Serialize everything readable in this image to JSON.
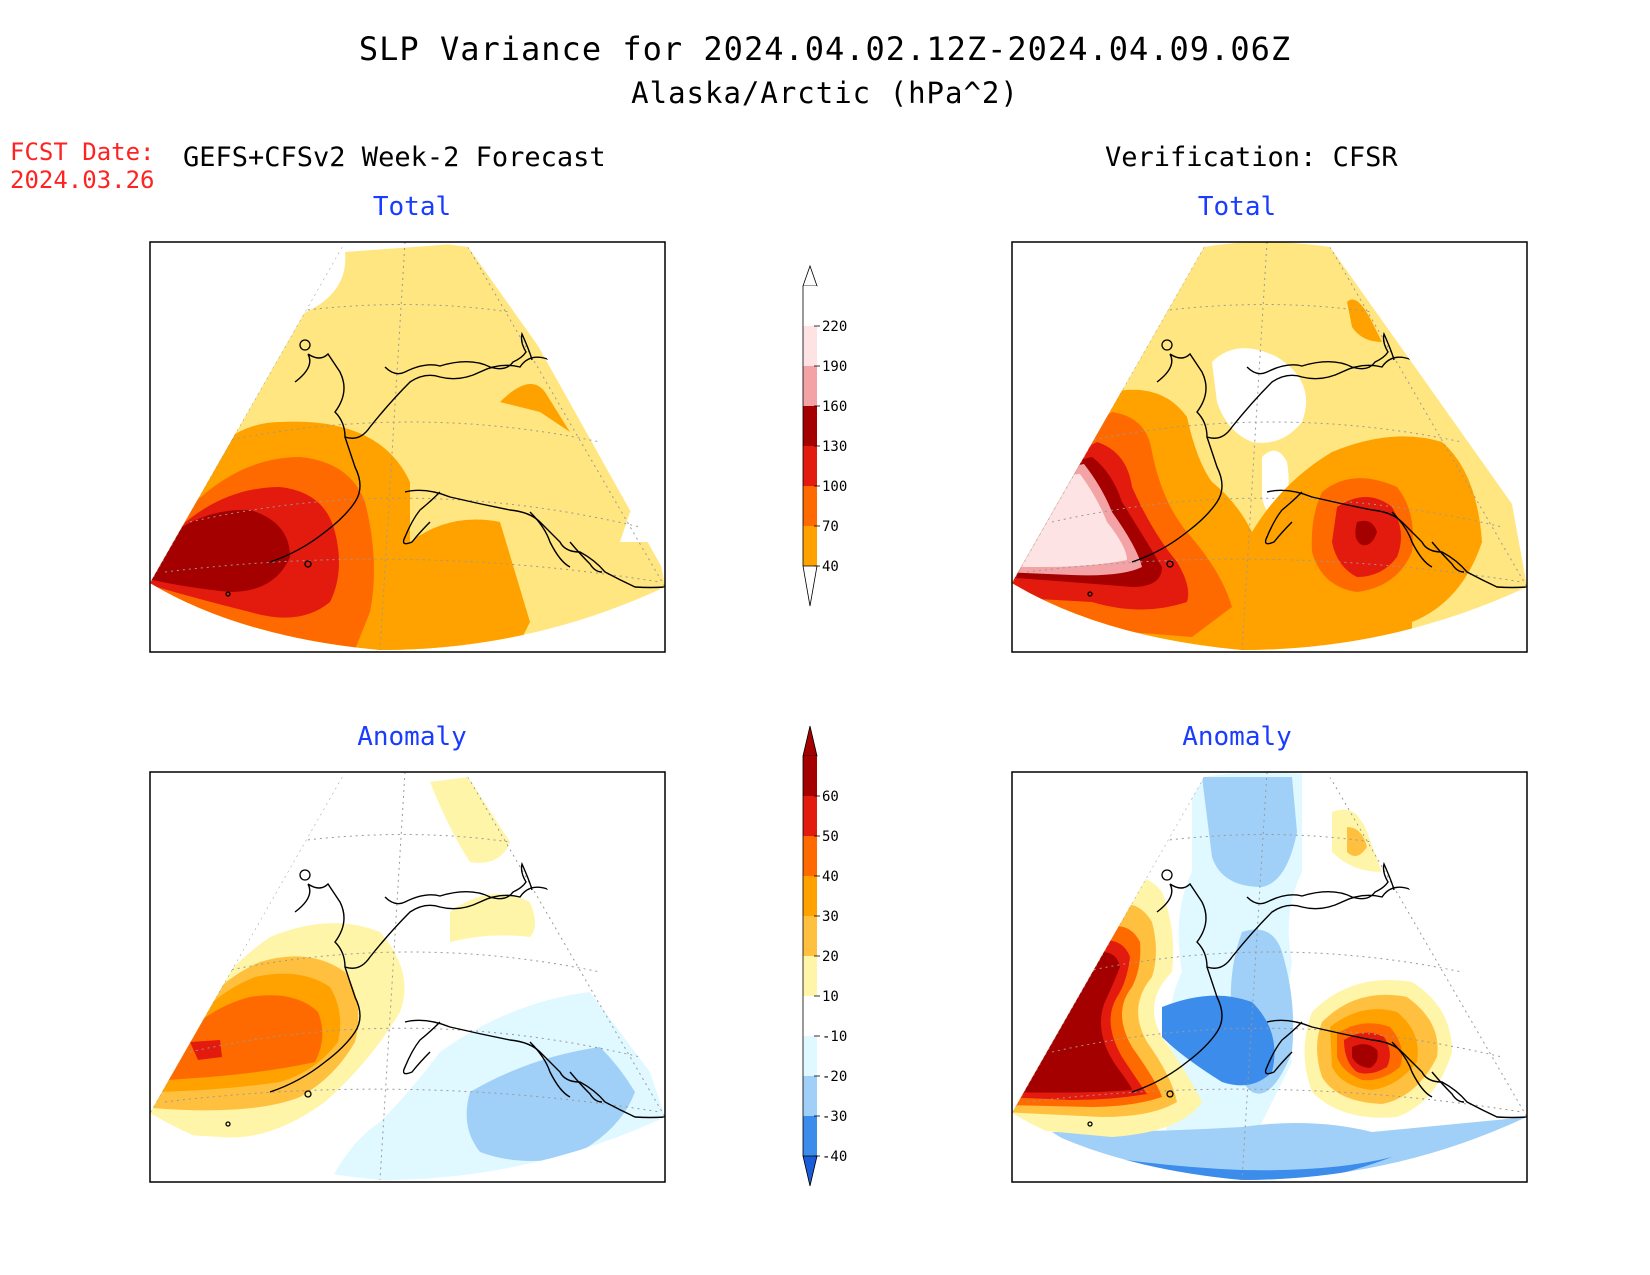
{
  "title": {
    "line1": "SLP Variance for 2024.04.02.12Z-2024.04.09.06Z",
    "line2": "Alaska/Arctic (hPa^2)"
  },
  "forecast": {
    "date_label": "FCST Date:",
    "date_value": "2024.03.26",
    "header": "GEFS+CFSv2 Week-2 Forecast"
  },
  "verification": {
    "header": "Verification: CFSR"
  },
  "panels": [
    {
      "id": "fcst-total",
      "title": "Total"
    },
    {
      "id": "verif-total",
      "title": "Total"
    },
    {
      "id": "fcst-anomaly",
      "title": "Anomaly"
    },
    {
      "id": "verif-anomaly",
      "title": "Anomaly"
    }
  ],
  "colorbars": {
    "total": {
      "levels": [
        "220",
        "190",
        "160",
        "130",
        "100",
        "70",
        "40"
      ],
      "colors": [
        "#fde3e3",
        "#f3a3a6",
        "#a50000",
        "#e31a0e",
        "#ff6a00",
        "#ffa200",
        "#ffe680"
      ]
    },
    "anomaly": {
      "levels": [
        "60",
        "50",
        "40",
        "30",
        "20",
        "10",
        "-10",
        "-20",
        "-30",
        "-40"
      ],
      "colors": [
        "#a50000",
        "#e31a0e",
        "#ff6a00",
        "#ffa200",
        "#ffc040",
        "#fff5a8",
        "#ffffff",
        "#e0f8ff",
        "#a0d0f8",
        "#3c8cec",
        "#1a5cd8"
      ]
    }
  }
}
